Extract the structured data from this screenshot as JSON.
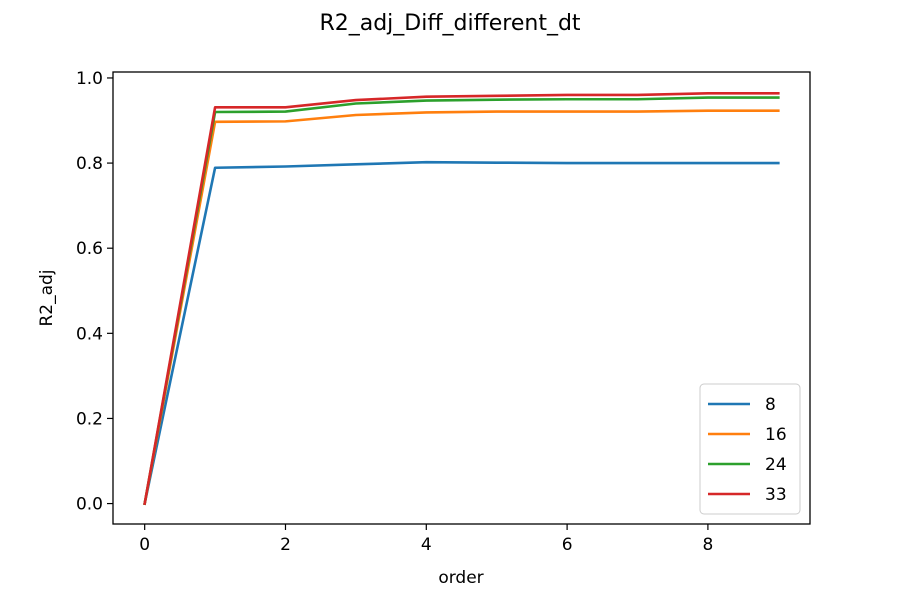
{
  "chart_data": {
    "type": "line",
    "title": "R2_adj_Diff_different_dt",
    "xlabel": "order",
    "ylabel": "R2_adj",
    "xlim": [
      -0.45,
      9.45
    ],
    "ylim": [
      -0.048,
      1.014
    ],
    "xticks": [
      0,
      2,
      4,
      6,
      8
    ],
    "xtick_labels": [
      "0",
      "2",
      "4",
      "6",
      "8"
    ],
    "yticks": [
      0.0,
      0.2,
      0.4,
      0.6,
      0.8,
      1.0
    ],
    "ytick_labels": [
      "0.0",
      "0.2",
      "0.4",
      "0.6",
      "0.8",
      "1.0"
    ],
    "grid": false,
    "legend_position": "bottom-right",
    "x": [
      0,
      1,
      2,
      3,
      4,
      5,
      6,
      7,
      8,
      9
    ],
    "series": [
      {
        "name": "8",
        "color": "#1f77b4",
        "values": [
          0.0,
          0.789,
          0.792,
          0.797,
          0.802,
          0.801,
          0.8,
          0.8,
          0.8,
          0.8
        ]
      },
      {
        "name": "16",
        "color": "#ff7f0e",
        "values": [
          0.0,
          0.897,
          0.898,
          0.913,
          0.919,
          0.921,
          0.921,
          0.921,
          0.923,
          0.923
        ]
      },
      {
        "name": "24",
        "color": "#2ca02c",
        "values": [
          0.0,
          0.92,
          0.921,
          0.94,
          0.947,
          0.949,
          0.95,
          0.95,
          0.954,
          0.954
        ]
      },
      {
        "name": "33",
        "color": "#d62728",
        "values": [
          0.0,
          0.931,
          0.931,
          0.948,
          0.956,
          0.958,
          0.96,
          0.96,
          0.964,
          0.964
        ]
      }
    ]
  }
}
